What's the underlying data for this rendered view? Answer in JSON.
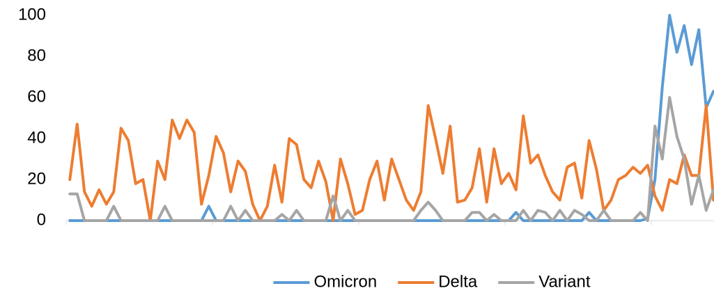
{
  "chart_data": {
    "type": "line",
    "categories": [
      null,
      null,
      null,
      null,
      null,
      null,
      null,
      null,
      null,
      null,
      null,
      null,
      null,
      null,
      null,
      null,
      null,
      null,
      null,
      null,
      null,
      null,
      null,
      null,
      null,
      null,
      null,
      null,
      null,
      null,
      null,
      null,
      null,
      null,
      null,
      null,
      null,
      null,
      null,
      null,
      null,
      null,
      null,
      null,
      null,
      null,
      null,
      null,
      null,
      null,
      null,
      null,
      null,
      null,
      null,
      null,
      null,
      null,
      null,
      null,
      null,
      null,
      null,
      null,
      null,
      null,
      null,
      null,
      null,
      null,
      null,
      null,
      null,
      null,
      null,
      null,
      null,
      null,
      null,
      null,
      null,
      null,
      null,
      null,
      null,
      null,
      null,
      null,
      null
    ],
    "series": [
      {
        "name": "Omicron",
        "color": "#5b9bd5",
        "values": [
          0,
          0,
          0,
          0,
          0,
          0,
          0,
          0,
          0,
          0,
          0,
          0,
          0,
          0,
          0,
          0,
          0,
          0,
          0,
          7,
          0,
          0,
          0,
          0,
          0,
          0,
          0,
          0,
          0,
          0,
          0,
          0,
          0,
          0,
          0,
          0,
          0,
          0,
          0,
          0,
          0,
          0,
          0,
          0,
          0,
          0,
          0,
          0,
          0,
          0,
          0,
          0,
          0,
          0,
          0,
          0,
          0,
          0,
          0,
          0,
          0,
          4,
          0,
          0,
          0,
          0,
          0,
          0,
          0,
          0,
          0,
          4,
          0,
          0,
          0,
          0,
          0,
          0,
          0,
          1,
          20,
          65,
          100,
          82,
          95,
          76,
          93,
          55,
          63
        ]
      },
      {
        "name": "Delta",
        "color": "#ed7d31",
        "values": [
          20,
          47,
          14,
          7,
          15,
          8,
          14,
          45,
          39,
          18,
          20,
          0,
          29,
          20,
          49,
          40,
          49,
          43,
          8,
          22,
          41,
          33,
          14,
          29,
          24,
          8,
          0,
          7,
          27,
          9,
          40,
          37,
          20,
          16,
          29,
          19,
          0,
          30,
          18,
          3,
          5,
          20,
          29,
          10,
          30,
          20,
          10,
          5,
          14,
          56,
          40,
          23,
          46,
          9,
          10,
          16,
          35,
          9,
          35,
          18,
          23,
          15,
          51,
          28,
          32,
          22,
          14,
          10,
          26,
          28,
          11,
          39,
          25,
          5,
          10,
          20,
          22,
          26,
          23,
          27,
          12,
          5,
          20,
          18,
          32,
          22,
          22,
          56,
          10
        ]
      },
      {
        "name": "Variant",
        "color": "#a5a5a5",
        "values": [
          13,
          13,
          0,
          0,
          0,
          0,
          7,
          0,
          0,
          0,
          0,
          0,
          0,
          7,
          0,
          0,
          0,
          0,
          0,
          0,
          0,
          0,
          7,
          0,
          5,
          0,
          0,
          0,
          0,
          3,
          0,
          5,
          0,
          0,
          0,
          0,
          12,
          0,
          5,
          0,
          0,
          0,
          0,
          0,
          0,
          0,
          0,
          0,
          5,
          9,
          5,
          0,
          0,
          0,
          0,
          4,
          4,
          0,
          3,
          0,
          0,
          0,
          5,
          0,
          5,
          4,
          0,
          5,
          0,
          5,
          3,
          0,
          0,
          5,
          0,
          0,
          0,
          0,
          4,
          0,
          46,
          30,
          60,
          41,
          30,
          8,
          22,
          5,
          15
        ]
      }
    ],
    "ylim": [
      0,
      100
    ],
    "yticks": [
      0,
      20,
      40,
      60,
      80,
      100
    ],
    "grid": false,
    "legend": "bottom"
  }
}
